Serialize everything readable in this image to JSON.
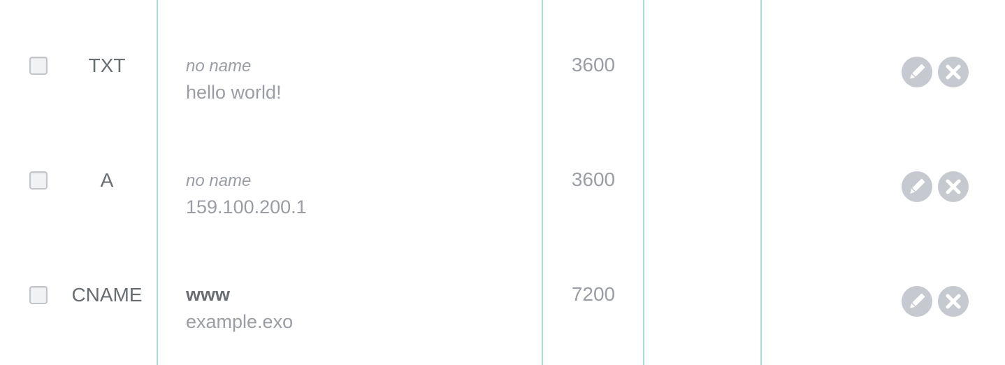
{
  "records": [
    {
      "type": "TXT",
      "name": "no name",
      "name_is_placeholder": true,
      "content": "hello world!",
      "ttl": "3600"
    },
    {
      "type": "A",
      "name": "no name",
      "name_is_placeholder": true,
      "content": "159.100.200.1",
      "ttl": "3600"
    },
    {
      "type": "CNAME",
      "name": "www",
      "name_is_placeholder": false,
      "content": "example.exo",
      "ttl": "7200"
    }
  ],
  "icons": {
    "edit": "pencil-icon",
    "delete": "close-icon"
  },
  "colors": {
    "divider": "#a9dfd2",
    "action_bg": "#c7c9d0",
    "text_muted": "#9a9ea4",
    "text_strong": "#686d72"
  }
}
